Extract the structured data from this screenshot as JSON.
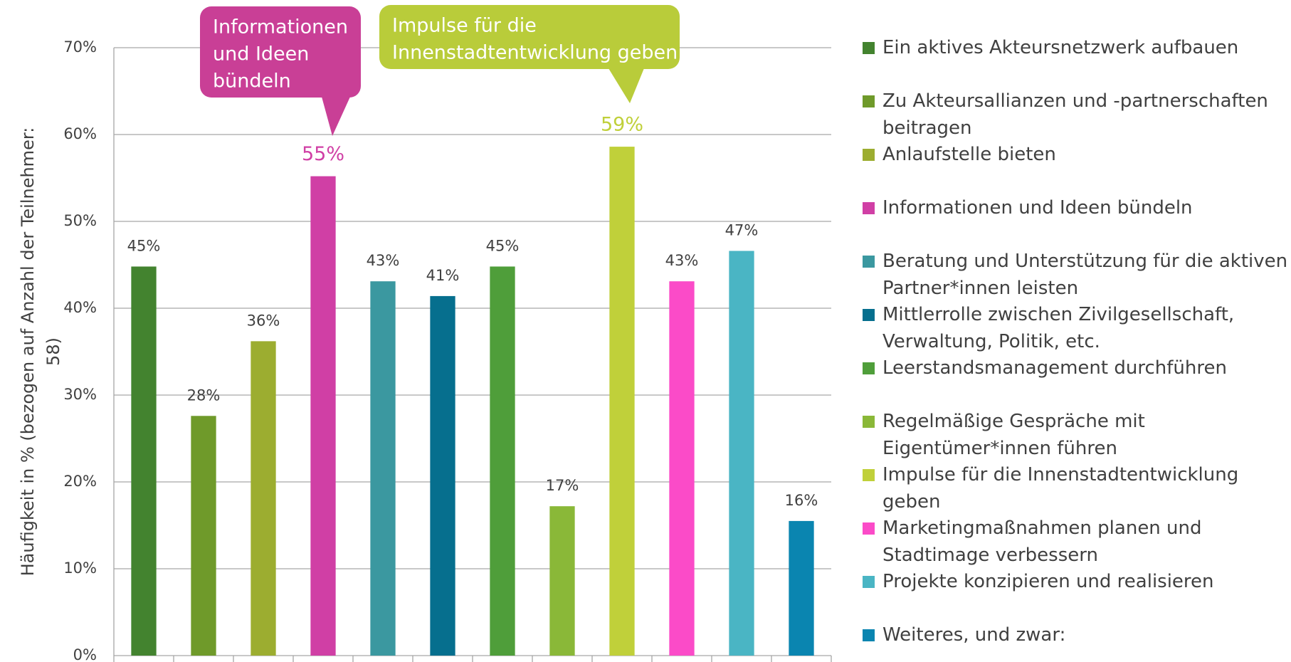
{
  "chart_data": {
    "type": "bar",
    "y_label": [
      "Häufigkeit in % (bezogen auf Anzahl der Teilnehmer:",
      "58)"
    ],
    "categories": [
      "Ein aktives Akteursnetzwerk aufbauen",
      "Zu Akteursallianzen und -partnerschaften beitragen",
      "Anlaufstelle bieten",
      "Informationen und Ideen bündeln",
      "Beratung und Unterstützung für die aktiven Partner*innen leisten",
      "Mittlerrolle zwischen Zivilgesellschaft, Verwaltung, Politik, etc.",
      "Leerstandsmanagement durchführen",
      "Regelmäßige Gespräche mit Eigentümer*innen führen",
      "Impulse für die Innenstadtentwicklung geben",
      "Marketingmaßnahmen planen und Stadtimage verbessern",
      "Projekte konzipieren und realisieren",
      "Weiteres, und zwar:"
    ],
    "values": [
      44.8,
      27.6,
      36.2,
      55.2,
      43.1,
      41.4,
      44.8,
      17.2,
      58.6,
      43.1,
      46.6,
      15.5
    ],
    "value_labels": [
      "45%",
      "28%",
      "36%",
      "55%",
      "43%",
      "41%",
      "45%",
      "17%",
      "59%",
      "43%",
      "47%",
      "16%"
    ],
    "colors": [
      "#43832f",
      "#6f9a2a",
      "#9cad30",
      "#d03fa5",
      "#3b98a0",
      "#066f8e",
      "#4f9e3a",
      "#8ab838",
      "#c0d03a",
      "#fb4bc8",
      "#4ab5c4",
      "#0a85b0"
    ],
    "value_label_colors": [
      "#404040",
      "#404040",
      "#404040",
      "#d03fa5",
      "#404040",
      "#404040",
      "#404040",
      "#404040",
      "#c0d03a",
      "#404040",
      "#404040",
      "#404040"
    ],
    "annotations": [
      {
        "lines": [
          "Informationen",
          "und Ideen",
          "bündeln"
        ],
        "color": "#c93f96"
      },
      {
        "lines": [
          "Impulse für die",
          "Innenstadtentwicklung geben"
        ],
        "color": "#b9cc3a"
      }
    ],
    "ylim": [
      0,
      70
    ],
    "yticks": [
      {
        "value": 0,
        "label": "0%"
      },
      {
        "value": 10,
        "label": "10%"
      },
      {
        "value": 20,
        "label": "20%"
      },
      {
        "value": 30,
        "label": "30%"
      },
      {
        "value": 40,
        "label": "40%"
      },
      {
        "value": 50,
        "label": "50%"
      },
      {
        "value": 60,
        "label": "60%"
      },
      {
        "value": 70,
        "label": "70%"
      }
    ],
    "grid": true,
    "legend": "right"
  }
}
